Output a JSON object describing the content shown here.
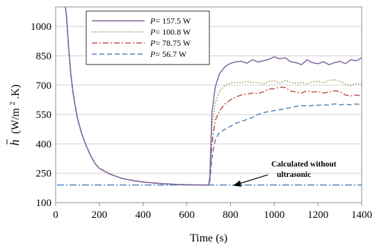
{
  "chart_data": {
    "type": "line",
    "title": "",
    "xlabel": "Time (s)",
    "ylabel_main": "h",
    "ylabel_units": "(W/m",
    "ylabel_sup": "2",
    "ylabel_tail": ".K)",
    "xlim": [
      0,
      1400
    ],
    "ylim": [
      100,
      1100
    ],
    "xticks": [
      0,
      200,
      400,
      600,
      800,
      1000,
      1200,
      1400
    ],
    "yticks": [
      100,
      250,
      400,
      550,
      700,
      850,
      1000
    ],
    "grid": "horizontal",
    "legend_position": "top-center",
    "legend_prefix": "P",
    "series": [
      {
        "name": "= 157.5 W",
        "color": "#8064a2",
        "dash": "solid",
        "x": [
          45,
          50,
          60,
          70,
          80,
          90,
          100,
          120,
          140,
          160,
          180,
          200,
          250,
          300,
          350,
          400,
          450,
          500,
          550,
          600,
          650,
          700,
          705,
          715,
          730,
          750,
          775,
          800,
          825,
          850,
          875,
          900,
          925,
          950,
          975,
          1000,
          1025,
          1050,
          1075,
          1100,
          1125,
          1150,
          1175,
          1200,
          1225,
          1250,
          1275,
          1300,
          1325,
          1350,
          1375,
          1400
        ],
        "values": [
          1100,
          1050,
          880,
          750,
          660,
          590,
          530,
          450,
          390,
          340,
          300,
          275,
          245,
          225,
          213,
          205,
          200,
          196,
          193,
          191,
          190,
          190,
          230,
          560,
          690,
          760,
          795,
          812,
          820,
          822,
          812,
          830,
          818,
          825,
          832,
          845,
          835,
          840,
          820,
          815,
          805,
          830,
          815,
          810,
          820,
          805,
          815,
          822,
          810,
          830,
          825,
          840
        ]
      },
      {
        "name": "= 100.8 W",
        "color": "#77933c",
        "dash": "1.5,2.5",
        "x": [
          45,
          50,
          60,
          70,
          80,
          90,
          100,
          120,
          140,
          160,
          180,
          200,
          250,
          300,
          350,
          400,
          450,
          500,
          550,
          600,
          650,
          700,
          705,
          715,
          730,
          750,
          775,
          800,
          825,
          850,
          875,
          900,
          925,
          950,
          975,
          1000,
          1025,
          1050,
          1075,
          1100,
          1125,
          1150,
          1175,
          1200,
          1225,
          1250,
          1275,
          1300,
          1325,
          1350,
          1375,
          1400
        ],
        "values": [
          1100,
          1050,
          880,
          750,
          660,
          590,
          530,
          450,
          390,
          340,
          300,
          275,
          245,
          225,
          213,
          205,
          200,
          196,
          193,
          191,
          190,
          190,
          220,
          480,
          610,
          670,
          700,
          710,
          715,
          712,
          720,
          712,
          715,
          705,
          720,
          722,
          710,
          725,
          715,
          708,
          715,
          705,
          718,
          720,
          712,
          725,
          728,
          720,
          705,
          698,
          708,
          705
        ]
      },
      {
        "name": "= 78.75 W",
        "color": "#c0504d",
        "dash": "8,3,2,3",
        "x": [
          45,
          50,
          60,
          70,
          80,
          90,
          100,
          120,
          140,
          160,
          180,
          200,
          250,
          300,
          350,
          400,
          450,
          500,
          550,
          600,
          650,
          700,
          705,
          715,
          730,
          750,
          775,
          800,
          825,
          850,
          875,
          900,
          925,
          950,
          975,
          1000,
          1025,
          1050,
          1075,
          1100,
          1125,
          1150,
          1175,
          1200,
          1225,
          1250,
          1275,
          1300,
          1325,
          1350,
          1375,
          1400
        ],
        "values": [
          1100,
          1050,
          880,
          750,
          660,
          590,
          530,
          450,
          390,
          340,
          300,
          275,
          245,
          225,
          213,
          205,
          200,
          196,
          193,
          191,
          190,
          190,
          210,
          400,
          520,
          570,
          605,
          625,
          640,
          650,
          655,
          660,
          658,
          665,
          680,
          682,
          690,
          688,
          670,
          665,
          660,
          672,
          665,
          668,
          660,
          665,
          672,
          668,
          650,
          645,
          650,
          645
        ]
      },
      {
        "name": "= 56.7 W",
        "color": "#4f81bd",
        "dash": "7,4",
        "x": [
          45,
          50,
          60,
          70,
          80,
          90,
          100,
          120,
          140,
          160,
          180,
          200,
          250,
          300,
          350,
          400,
          450,
          500,
          550,
          600,
          650,
          700,
          705,
          715,
          730,
          750,
          775,
          800,
          825,
          850,
          875,
          900,
          925,
          950,
          975,
          1000,
          1025,
          1050,
          1075,
          1100,
          1125,
          1150,
          1175,
          1200,
          1225,
          1250,
          1275,
          1300,
          1325,
          1350,
          1375,
          1400
        ],
        "values": [
          1100,
          1050,
          880,
          750,
          660,
          590,
          530,
          450,
          390,
          340,
          300,
          275,
          245,
          225,
          213,
          205,
          200,
          196,
          193,
          191,
          190,
          190,
          205,
          330,
          420,
          460,
          475,
          490,
          505,
          515,
          525,
          535,
          550,
          560,
          565,
          570,
          575,
          580,
          585,
          592,
          595,
          594,
          596,
          598,
          600,
          598,
          605,
          600,
          602,
          600,
          604,
          600
        ]
      }
    ],
    "reference_line": {
      "value": 190,
      "x_range": [
        0,
        1400
      ],
      "color": "#4f81bd",
      "dash": "10,3,2,3"
    },
    "annotation": {
      "line1": "Calculated without",
      "line2": "ultrasonic",
      "x_point": 805,
      "y_point": 190
    }
  }
}
